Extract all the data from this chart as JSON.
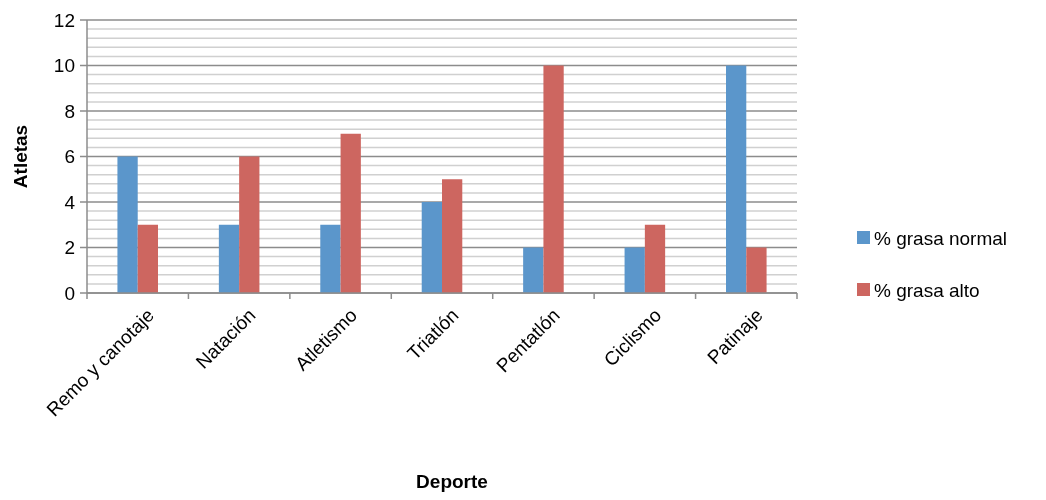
{
  "chart_data": {
    "type": "bar",
    "xlabel": "Deporte",
    "ylabel": "Atletas",
    "categories": [
      "Remo y canotaje",
      "Natación",
      "Atletismo",
      "Triatlón",
      "Pentatlón",
      "Ciclismo",
      "Patinaje"
    ],
    "series": [
      {
        "name": "% grasa normal",
        "color": "#5b96cb",
        "values": [
          6,
          3,
          3,
          4,
          2,
          2,
          10
        ]
      },
      {
        "name": "% grasa alto",
        "color": "#cd6660",
        "values": [
          3,
          6,
          7,
          5,
          10,
          3,
          2
        ]
      }
    ],
    "ylim": [
      0,
      12
    ],
    "yticks": [
      0,
      2,
      4,
      6,
      8,
      10,
      12
    ],
    "grid": true,
    "legend": "right"
  }
}
